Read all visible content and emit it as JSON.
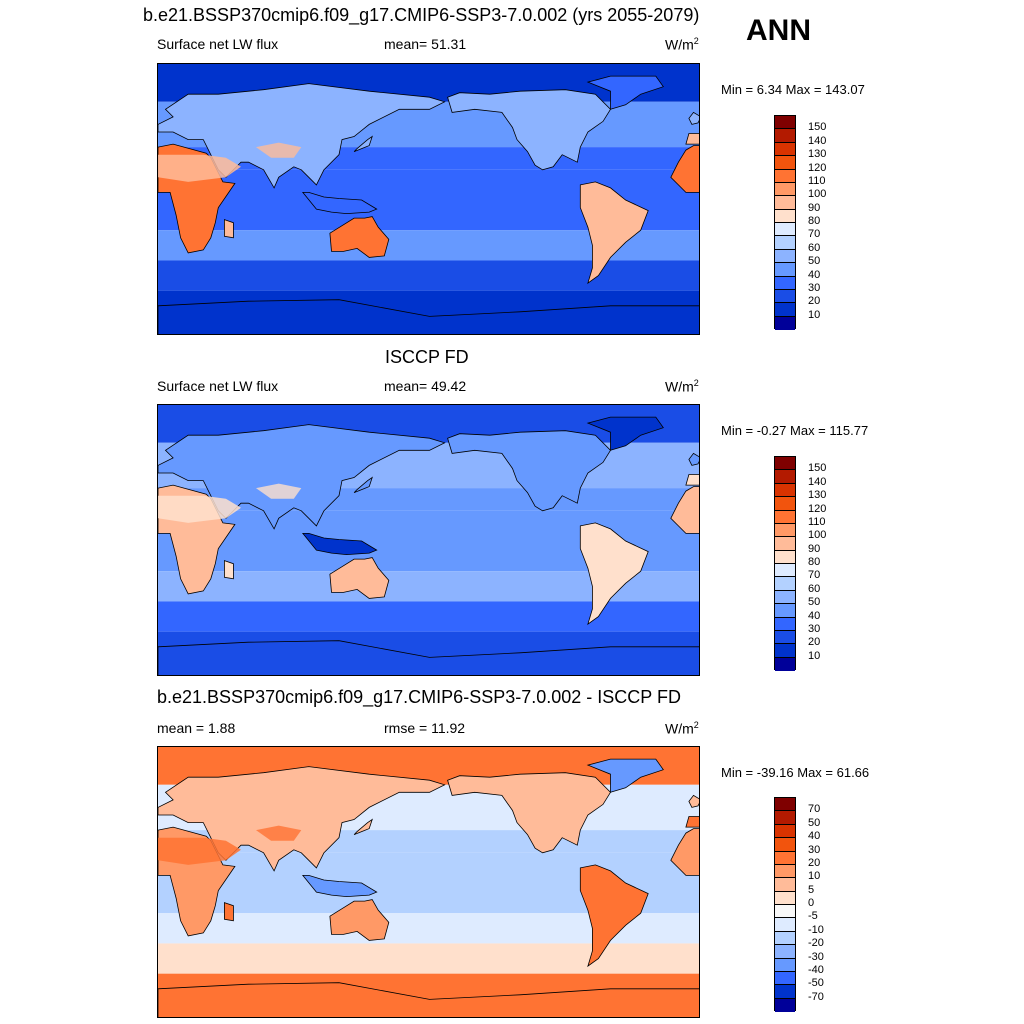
{
  "header": {
    "title": "b.e21.BSSP370cmip6.f09_g17.CMIP6-SSP3-7.0.002 (yrs 2055-2079)",
    "season": "ANN"
  },
  "panels": [
    {
      "id": "model",
      "title": "",
      "left_label": "Surface net LW flux",
      "center_label": "mean=  51.31",
      "units_base": "W/m",
      "units_exp": "2",
      "minmax": "Min =   6.34 Max = 143.07",
      "colorbar": {
        "ticks": [
          "150",
          "140",
          "130",
          "120",
          "110",
          "100",
          "90",
          "80",
          "70",
          "60",
          "50",
          "40",
          "30",
          "20",
          "10"
        ],
        "colors": [
          "#7f0000",
          "#b31a00",
          "#d93300",
          "#f2540d",
          "#ff7333",
          "#ff9966",
          "#ffbb99",
          "#ffe0cc",
          "#deebff",
          "#b3d1ff",
          "#8cb3ff",
          "#6699ff",
          "#3366ff",
          "#1a4de6",
          "#0033cc",
          "#000099"
        ]
      },
      "map": {
        "ocean_tropics": "#3366ff",
        "ocean_midlat": "#6699ff",
        "ocean_southern": "#1a4de6",
        "polar": "#0033cc",
        "land_desert": "#ff7333",
        "land_warm": "#ffbb99",
        "land_temperate": "#8cb3ff",
        "land_cold": "#3366ff"
      }
    },
    {
      "id": "obs",
      "title": "ISCCP FD",
      "left_label": "Surface net LW flux",
      "center_label": "mean=  49.42",
      "units_base": "W/m",
      "units_exp": "2",
      "minmax": "Min =  -0.27 Max = 115.77",
      "colorbar": {
        "ticks": [
          "150",
          "140",
          "130",
          "120",
          "110",
          "100",
          "90",
          "80",
          "70",
          "60",
          "50",
          "40",
          "30",
          "20",
          "10"
        ],
        "colors": [
          "#7f0000",
          "#b31a00",
          "#d93300",
          "#f2540d",
          "#ff7333",
          "#ff9966",
          "#ffbb99",
          "#ffe0cc",
          "#deebff",
          "#b3d1ff",
          "#8cb3ff",
          "#6699ff",
          "#3366ff",
          "#1a4de6",
          "#0033cc",
          "#000099"
        ]
      },
      "map": {
        "ocean_tropics": "#6699ff",
        "ocean_midlat": "#8cb3ff",
        "ocean_southern": "#3366ff",
        "polar": "#1a4de6",
        "land_desert": "#ffbb99",
        "land_warm": "#ffe0cc",
        "land_temperate": "#6699ff",
        "land_cold": "#0033cc"
      }
    },
    {
      "id": "diff",
      "title": "b.e21.BSSP370cmip6.f09_g17.CMIP6-SSP3-7.0.002 - ISCCP FD",
      "left_label": "mean =   1.88",
      "center_label": "rmse =  11.92",
      "units_base": "W/m",
      "units_exp": "2",
      "minmax": "Min = -39.16 Max =  61.66",
      "colorbar": {
        "ticks": [
          "70",
          "50",
          "40",
          "30",
          "20",
          "10",
          "5",
          "0",
          "-5",
          "-10",
          "-20",
          "-30",
          "-40",
          "-50",
          "-70"
        ],
        "colors": [
          "#7f0000",
          "#b31a00",
          "#d93300",
          "#f2540d",
          "#ff7333",
          "#ff9966",
          "#ffbb99",
          "#ffe0cc",
          "#f8f8f8",
          "#deebff",
          "#b3d1ff",
          "#8cb3ff",
          "#6699ff",
          "#3366ff",
          "#0033cc",
          "#000099"
        ]
      },
      "map": {
        "ocean_tropics": "#b3d1ff",
        "ocean_midlat": "#deebff",
        "ocean_southern": "#ffe0cc",
        "polar": "#ff7333",
        "land_desert": "#ff9966",
        "land_warm": "#ff7333",
        "land_temperate": "#ffbb99",
        "land_cold": "#6699ff"
      }
    }
  ]
}
